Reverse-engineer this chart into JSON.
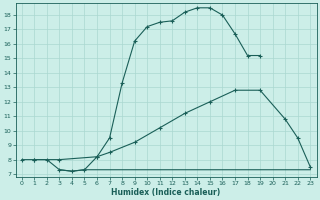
{
  "xlabel": "Humidex (Indice chaleur)",
  "bg_color": "#cceee8",
  "grid_color": "#aad8d0",
  "line_color": "#1a5f58",
  "xlim": [
    -0.5,
    23.5
  ],
  "ylim": [
    6.8,
    18.8
  ],
  "xticks": [
    0,
    1,
    2,
    3,
    4,
    5,
    6,
    7,
    8,
    9,
    10,
    11,
    12,
    13,
    14,
    15,
    16,
    17,
    18,
    19,
    20,
    21,
    22,
    23
  ],
  "yticks": [
    7,
    8,
    9,
    10,
    11,
    12,
    13,
    14,
    15,
    16,
    17,
    18
  ],
  "curve1_x": [
    1,
    2,
    3,
    4,
    5,
    6,
    7,
    8,
    9,
    10,
    11,
    12,
    13,
    14,
    15,
    16,
    17,
    18,
    19
  ],
  "curve1_y": [
    8.0,
    8.0,
    7.3,
    7.2,
    7.3,
    8.2,
    9.5,
    13.3,
    16.2,
    17.2,
    17.5,
    17.6,
    18.2,
    18.5,
    18.5,
    18.0,
    16.7,
    15.2,
    15.2
  ],
  "curve2_x": [
    0,
    1,
    3,
    6,
    7,
    9,
    11,
    13,
    15,
    17,
    19,
    21,
    22,
    23
  ],
  "curve2_y": [
    8.0,
    8.0,
    8.0,
    8.2,
    8.5,
    9.2,
    10.2,
    11.2,
    12.0,
    12.8,
    12.8,
    10.8,
    9.5,
    7.5
  ],
  "curve3_x": [
    3,
    4,
    5,
    6,
    23
  ],
  "curve3_y": [
    7.3,
    7.2,
    7.3,
    7.3,
    7.3
  ],
  "marker": "+"
}
